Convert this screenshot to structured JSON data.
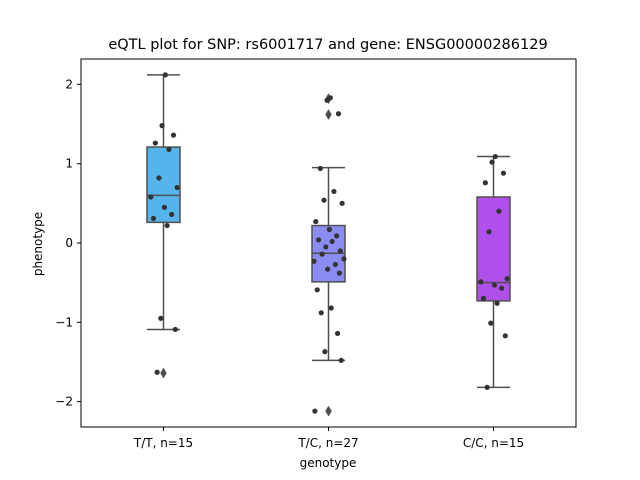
{
  "chart_data": {
    "type": "box",
    "title": "eQTL plot for SNP: rs6001717 and gene: ENSG00000286129",
    "xlabel": "genotype",
    "ylabel": "phenotype",
    "ylim": [
      -2.32,
      2.32
    ],
    "yticks": [
      2,
      1,
      0,
      -1,
      -2
    ],
    "ytick_labels": [
      "2",
      "1",
      "0",
      "−1",
      "−2"
    ],
    "grid": false,
    "categories": [
      "T/T, n=15",
      "T/C, n=27",
      "C/C, n=15"
    ],
    "boxes": [
      {
        "category": "T/T, n=15",
        "color": "#55b4ec",
        "q1": 0.26,
        "median": 0.6,
        "q3": 1.21,
        "whisker_low": -1.09,
        "whisker_high": 2.12,
        "outliers": [
          -1.64
        ],
        "points": [
          2.12,
          1.48,
          1.36,
          1.26,
          1.18,
          0.82,
          0.7,
          0.58,
          0.45,
          0.36,
          0.31,
          0.22,
          -0.95,
          -1.09,
          -1.63
        ]
      },
      {
        "category": "T/C, n=27",
        "color": "#8a8cf2",
        "q1": -0.49,
        "median": -0.13,
        "q3": 0.22,
        "whisker_low": -1.48,
        "whisker_high": 0.95,
        "outliers": [
          1.82,
          1.62,
          -2.12
        ],
        "points": [
          1.83,
          1.8,
          1.63,
          0.94,
          0.65,
          0.54,
          0.5,
          0.27,
          0.17,
          0.09,
          0.04,
          0.02,
          -0.05,
          -0.1,
          -0.14,
          -0.2,
          -0.23,
          -0.27,
          -0.33,
          -0.38,
          -0.59,
          -0.82,
          -0.88,
          -1.14,
          -1.37,
          -1.48,
          -2.12
        ]
      },
      {
        "category": "C/C, n=15",
        "color": "#b050ea",
        "q1": -0.73,
        "median": -0.5,
        "q3": 0.58,
        "whisker_low": -1.82,
        "whisker_high": 1.09,
        "outliers": [],
        "points": [
          1.09,
          1.02,
          0.88,
          0.76,
          0.4,
          0.14,
          -0.45,
          -0.49,
          -0.53,
          -0.57,
          -0.7,
          -0.76,
          -1.01,
          -1.17,
          -1.82
        ]
      }
    ]
  }
}
